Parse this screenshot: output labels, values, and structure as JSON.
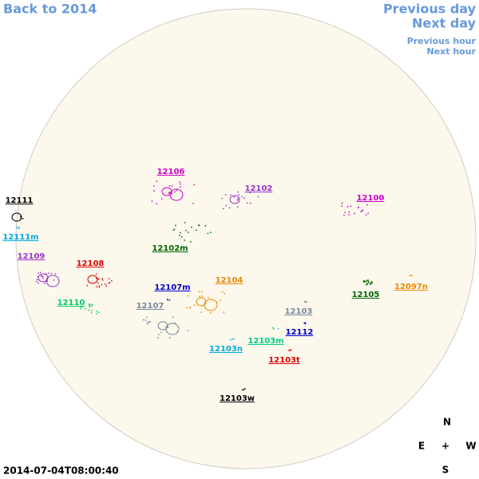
{
  "navigation": {
    "back": "Back to 2014",
    "previous_day": "Previous day",
    "next_day": "Next day",
    "previous_hour": "Previous hour",
    "next_hour": "Next hour"
  },
  "regions": [
    {
      "label": "12106",
      "color": "#cc00cc"
    },
    {
      "label": "12102",
      "color": "#9933cc"
    },
    {
      "label": "12100",
      "color": "#cc00cc"
    },
    {
      "label": "12111",
      "color": "#000000"
    },
    {
      "label": "12111m",
      "color": "#00aadd"
    },
    {
      "label": "12109",
      "color": "#9933cc"
    },
    {
      "label": "12108",
      "color": "#dd0000"
    },
    {
      "label": "12102m",
      "color": "#006600"
    },
    {
      "label": "12104",
      "color": "#ee8800"
    },
    {
      "label": "12107m",
      "color": "#0000cc"
    },
    {
      "label": "12097n",
      "color": "#ee8800"
    },
    {
      "label": "12105",
      "color": "#006600"
    },
    {
      "label": "12110",
      "color": "#00cc66"
    },
    {
      "label": "12107",
      "color": "#778899"
    },
    {
      "label": "12103",
      "color": "#778899"
    },
    {
      "label": "12112",
      "color": "#0000cc"
    },
    {
      "label": "12103m",
      "color": "#00cc88"
    },
    {
      "label": "12103n",
      "color": "#00aadd"
    },
    {
      "label": "12103t",
      "color": "#dd0000"
    },
    {
      "label": "12103w",
      "color": "#000000"
    }
  ],
  "timestamp": "2014-07-04T08:00:40",
  "compass": {
    "north": "N",
    "east": "E",
    "center": "+",
    "west": "W",
    "south": "S"
  }
}
